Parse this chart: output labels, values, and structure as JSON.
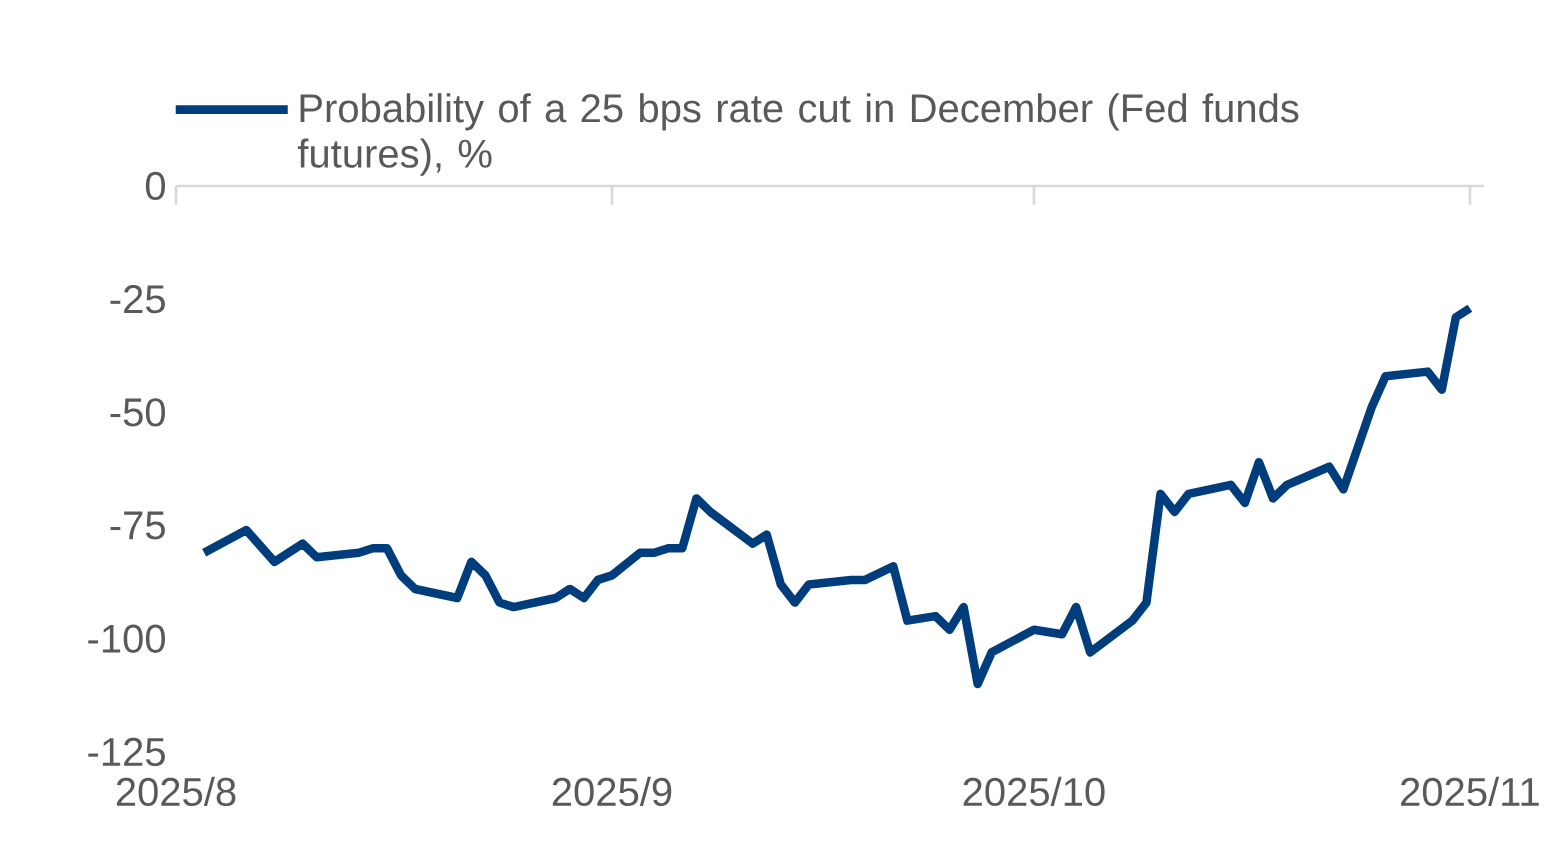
{
  "chart_data": {
    "type": "line",
    "x": [
      "2025-08-03",
      "2025-08-06",
      "2025-08-08",
      "2025-08-10",
      "2025-08-11",
      "2025-08-14",
      "2025-08-15",
      "2025-08-16",
      "2025-08-17",
      "2025-08-18",
      "2025-08-21",
      "2025-08-22",
      "2025-08-23",
      "2025-08-24",
      "2025-08-25",
      "2025-08-28",
      "2025-08-29",
      "2025-08-30",
      "2025-08-31",
      "2025-09-01",
      "2025-09-03",
      "2025-09-04",
      "2025-09-05",
      "2025-09-06",
      "2025-09-07",
      "2025-09-08",
      "2025-09-11",
      "2025-09-12",
      "2025-09-13",
      "2025-09-14",
      "2025-09-15",
      "2025-09-18",
      "2025-09-19",
      "2025-09-21",
      "2025-09-22",
      "2025-09-24",
      "2025-09-25",
      "2025-09-26",
      "2025-09-27",
      "2025-09-28",
      "2025-10-01",
      "2025-10-03",
      "2025-10-04",
      "2025-10-05",
      "2025-10-08",
      "2025-10-09",
      "2025-10-10",
      "2025-10-11",
      "2025-10-12",
      "2025-10-15",
      "2025-10-16",
      "2025-10-17",
      "2025-10-18",
      "2025-10-19",
      "2025-10-22",
      "2025-10-23",
      "2025-10-25",
      "2025-10-26",
      "2025-10-29",
      "2025-10-30",
      "2025-10-31",
      "2025-11-01"
    ],
    "series": [
      {
        "name": "Probability of a 25 bps rate cut in December (Fed funds futures), %",
        "color": "#003d7c",
        "values": [
          -81,
          -76,
          -83,
          -79,
          -82,
          -81,
          -80,
          -80,
          -86,
          -89,
          -91,
          -83,
          -86,
          -92,
          -93,
          -91,
          -89,
          -91,
          -87,
          -86,
          -81,
          -81,
          -80,
          -80,
          -69,
          -72,
          -79,
          -77,
          -88,
          -92,
          -88,
          -87,
          -87,
          -84,
          -96,
          -95,
          -98,
          -93,
          -110,
          -103,
          -98,
          -99,
          -93,
          -103,
          -96,
          -92,
          -68,
          -72,
          -68,
          -66,
          -70,
          -61,
          -69,
          -66,
          -62,
          -67,
          -49,
          -42,
          -41,
          -45,
          -29,
          -27
        ]
      }
    ],
    "xlim": [
      "2025-08-01",
      "2025-11-02"
    ],
    "xticks": [
      {
        "value": "2025-08-01",
        "label": "2025/8"
      },
      {
        "value": "2025-09-01",
        "label": "2025/9"
      },
      {
        "value": "2025-10-01",
        "label": "2025/10"
      },
      {
        "value": "2025-11-01",
        "label": "2025/11"
      }
    ],
    "ylim": [
      -125,
      0
    ],
    "yticks": [
      0,
      -25,
      -50,
      -75,
      -100,
      -125
    ],
    "legend": "top"
  }
}
